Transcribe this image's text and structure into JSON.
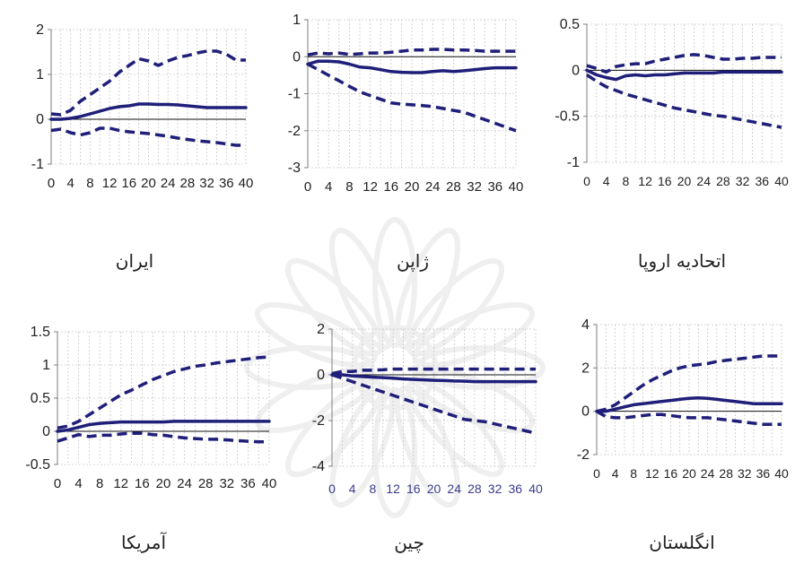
{
  "colors": {
    "series": "#1f1f7a",
    "grid": "#c8c8c8",
    "axis": "#7f7f7f",
    "text": "#222222",
    "tick_blue": "#3a3a8c"
  },
  "watermark_icon": "rosette-watermark-icon",
  "chart_data": [
    {
      "type": "line",
      "title": "ایران",
      "x": [
        0,
        2,
        4,
        6,
        8,
        10,
        12,
        14,
        16,
        18,
        20,
        22,
        24,
        26,
        28,
        30,
        32,
        34,
        36,
        38,
        40
      ],
      "xticks": [
        "0",
        "4",
        "8",
        "12",
        "16",
        "20",
        "24",
        "28",
        "32",
        "36",
        "40"
      ],
      "ylim": [
        -1,
        2
      ],
      "yticks": [
        "2",
        "1",
        "0",
        "-1"
      ],
      "series": [
        {
          "style": "solid",
          "values": [
            0,
            0,
            0.02,
            0.06,
            0.12,
            0.18,
            0.24,
            0.28,
            0.3,
            0.34,
            0.34,
            0.33,
            0.33,
            0.32,
            0.3,
            0.28,
            0.26,
            0.26,
            0.26,
            0.26,
            0.26
          ]
        },
        {
          "style": "dashed",
          "values": [
            0.12,
            0.1,
            0.2,
            0.4,
            0.55,
            0.7,
            0.85,
            1.05,
            1.2,
            1.35,
            1.3,
            1.2,
            1.3,
            1.38,
            1.42,
            1.48,
            1.52,
            1.52,
            1.45,
            1.32,
            1.32
          ]
        },
        {
          "style": "dashed",
          "values": [
            -0.25,
            -0.22,
            -0.3,
            -0.35,
            -0.3,
            -0.2,
            -0.2,
            -0.25,
            -0.28,
            -0.3,
            -0.32,
            -0.35,
            -0.38,
            -0.42,
            -0.45,
            -0.48,
            -0.5,
            -0.52,
            -0.55,
            -0.58,
            -0.58
          ]
        }
      ]
    },
    {
      "type": "line",
      "title": "ژاپن",
      "x": [
        0,
        2,
        4,
        6,
        8,
        10,
        12,
        14,
        16,
        18,
        20,
        22,
        24,
        26,
        28,
        30,
        32,
        34,
        36,
        38,
        40
      ],
      "xticks": [
        "0",
        "4",
        "8",
        "12",
        "16",
        "20",
        "24",
        "28",
        "32",
        "36",
        "40"
      ],
      "ylim": [
        -3,
        1
      ],
      "yticks": [
        "1",
        "0",
        "-1",
        "-2",
        "-3"
      ],
      "series": [
        {
          "style": "solid",
          "values": [
            -0.2,
            -0.12,
            -0.12,
            -0.14,
            -0.2,
            -0.28,
            -0.3,
            -0.35,
            -0.4,
            -0.42,
            -0.43,
            -0.43,
            -0.4,
            -0.38,
            -0.4,
            -0.38,
            -0.35,
            -0.32,
            -0.3,
            -0.3,
            -0.3
          ]
        },
        {
          "style": "dashed",
          "values": [
            0.05,
            0.1,
            0.08,
            0.1,
            0.06,
            0.08,
            0.1,
            0.1,
            0.12,
            0.15,
            0.18,
            0.18,
            0.2,
            0.2,
            0.18,
            0.18,
            0.17,
            0.15,
            0.15,
            0.15,
            0.15
          ]
        },
        {
          "style": "dashed",
          "values": [
            -0.2,
            -0.35,
            -0.5,
            -0.65,
            -0.8,
            -0.95,
            -1.05,
            -1.15,
            -1.25,
            -1.28,
            -1.3,
            -1.32,
            -1.35,
            -1.4,
            -1.45,
            -1.5,
            -1.6,
            -1.7,
            -1.8,
            -1.9,
            -2
          ]
        }
      ]
    },
    {
      "type": "line",
      "title": "اتحادیه اروپا",
      "x": [
        0,
        2,
        4,
        6,
        8,
        10,
        12,
        14,
        16,
        18,
        20,
        22,
        24,
        26,
        28,
        30,
        32,
        34,
        36,
        38,
        40
      ],
      "xticks": [
        "0",
        "4",
        "8",
        "12",
        "16",
        "20",
        "24",
        "28",
        "32",
        "36",
        "40"
      ],
      "ylim": [
        -1,
        0.5
      ],
      "yticks": [
        "0.5",
        "0",
        "-0.5",
        "-1"
      ],
      "series": [
        {
          "style": "solid",
          "values": [
            0,
            -0.05,
            -0.08,
            -0.1,
            -0.06,
            -0.05,
            -0.06,
            -0.05,
            -0.05,
            -0.04,
            -0.03,
            -0.03,
            -0.03,
            -0.03,
            -0.02,
            -0.02,
            -0.02,
            -0.02,
            -0.02,
            -0.02,
            -0.02
          ]
        },
        {
          "style": "dashed",
          "values": [
            0.05,
            0.02,
            -0.02,
            0.04,
            0.06,
            0.07,
            0.07,
            0.1,
            0.12,
            0.14,
            0.16,
            0.17,
            0.16,
            0.14,
            0.12,
            0.12,
            0.13,
            0.13,
            0.14,
            0.14,
            0.14
          ]
        },
        {
          "style": "dashed",
          "values": [
            -0.05,
            -0.12,
            -0.18,
            -0.22,
            -0.26,
            -0.29,
            -0.32,
            -0.35,
            -0.38,
            -0.41,
            -0.43,
            -0.45,
            -0.47,
            -0.49,
            -0.5,
            -0.52,
            -0.54,
            -0.56,
            -0.58,
            -0.6,
            -0.62
          ]
        }
      ]
    },
    {
      "type": "line",
      "title": "آمریکا",
      "x": [
        0,
        2,
        4,
        6,
        8,
        10,
        12,
        14,
        16,
        18,
        20,
        22,
        24,
        26,
        28,
        30,
        32,
        34,
        36,
        38,
        40
      ],
      "xticks": [
        "0",
        "4",
        "8",
        "12",
        "16",
        "20",
        "24",
        "28",
        "32",
        "36",
        "40"
      ],
      "ylim": [
        -0.5,
        1.5
      ],
      "yticks": [
        "1.5",
        "1",
        "0.5",
        "0",
        "-0.5"
      ],
      "series": [
        {
          "style": "solid",
          "values": [
            0,
            0.02,
            0.06,
            0.1,
            0.12,
            0.13,
            0.14,
            0.14,
            0.14,
            0.14,
            0.14,
            0.15,
            0.15,
            0.15,
            0.15,
            0.15,
            0.15,
            0.15,
            0.15,
            0.15,
            0.15
          ]
        },
        {
          "style": "dashed",
          "values": [
            0.05,
            0.08,
            0.15,
            0.25,
            0.35,
            0.45,
            0.55,
            0.62,
            0.7,
            0.78,
            0.84,
            0.9,
            0.94,
            0.98,
            1.0,
            1.03,
            1.05,
            1.07,
            1.09,
            1.11,
            1.12
          ]
        },
        {
          "style": "dashed",
          "values": [
            -0.15,
            -0.1,
            -0.05,
            -0.08,
            -0.06,
            -0.06,
            -0.04,
            -0.03,
            -0.03,
            -0.05,
            -0.06,
            -0.08,
            -0.1,
            -0.11,
            -0.12,
            -0.12,
            -0.13,
            -0.14,
            -0.15,
            -0.16,
            -0.16
          ]
        }
      ]
    },
    {
      "type": "line",
      "title": "چین",
      "x": [
        0,
        2,
        4,
        6,
        8,
        10,
        12,
        14,
        16,
        18,
        20,
        22,
        24,
        26,
        28,
        30,
        32,
        34,
        36,
        38,
        40
      ],
      "xticks": [
        "0",
        "4",
        "8",
        "12",
        "16",
        "20",
        "24",
        "28",
        "32",
        "36",
        "40"
      ],
      "xticks_blue": true,
      "ylim": [
        -4,
        2
      ],
      "yticks": [
        "2",
        "0",
        "-2",
        "-4"
      ],
      "series": [
        {
          "style": "solid",
          "values": [
            0,
            0,
            -0.05,
            -0.08,
            -0.1,
            -0.12,
            -0.15,
            -0.18,
            -0.2,
            -0.22,
            -0.24,
            -0.25,
            -0.27,
            -0.28,
            -0.3,
            -0.3,
            -0.3,
            -0.3,
            -0.3,
            -0.3,
            -0.3
          ]
        },
        {
          "style": "dashed",
          "values": [
            0.05,
            0.15,
            0.15,
            0.2,
            0.2,
            0.22,
            0.25,
            0.25,
            0.25,
            0.25,
            0.25,
            0.25,
            0.25,
            0.25,
            0.25,
            0.25,
            0.25,
            0.25,
            0.25,
            0.25,
            0.25
          ]
        },
        {
          "style": "dashed",
          "values": [
            0,
            -0.15,
            -0.3,
            -0.45,
            -0.6,
            -0.75,
            -0.9,
            -1.05,
            -1.2,
            -1.35,
            -1.5,
            -1.65,
            -1.8,
            -1.95,
            -2.0,
            -2.05,
            -2.15,
            -2.25,
            -2.35,
            -2.45,
            -2.55
          ]
        }
      ]
    },
    {
      "type": "line",
      "title": "انگلستان",
      "x": [
        0,
        2,
        4,
        6,
        8,
        10,
        12,
        14,
        16,
        18,
        20,
        22,
        24,
        26,
        28,
        30,
        32,
        34,
        36,
        38,
        40
      ],
      "xticks": [
        "0",
        "4",
        "8",
        "12",
        "16",
        "20",
        "24",
        "28",
        "32",
        "36",
        "40"
      ],
      "ylim": [
        -2,
        4
      ],
      "yticks": [
        "4",
        "2",
        "0",
        "-2"
      ],
      "series": [
        {
          "style": "solid",
          "values": [
            0,
            0,
            0.1,
            0.2,
            0.3,
            0.35,
            0.4,
            0.45,
            0.5,
            0.55,
            0.6,
            0.62,
            0.6,
            0.55,
            0.5,
            0.45,
            0.4,
            0.35,
            0.35,
            0.35,
            0.35
          ]
        },
        {
          "style": "dashed",
          "values": [
            0,
            0.1,
            0.3,
            0.6,
            0.9,
            1.2,
            1.45,
            1.65,
            1.85,
            2.0,
            2.1,
            2.15,
            2.2,
            2.3,
            2.35,
            2.4,
            2.45,
            2.5,
            2.55,
            2.55,
            2.55
          ]
        },
        {
          "style": "dashed",
          "values": [
            0,
            -0.25,
            -0.3,
            -0.3,
            -0.25,
            -0.2,
            -0.15,
            -0.15,
            -0.2,
            -0.25,
            -0.3,
            -0.3,
            -0.3,
            -0.35,
            -0.4,
            -0.45,
            -0.5,
            -0.55,
            -0.6,
            -0.6,
            -0.6
          ]
        }
      ]
    }
  ]
}
